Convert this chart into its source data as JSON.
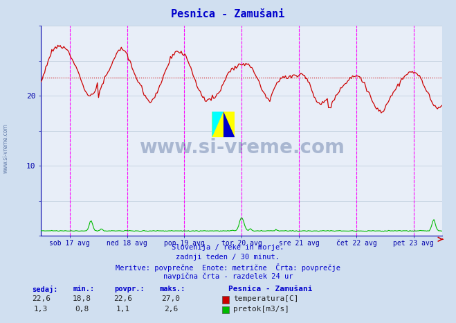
{
  "title": "Pesnica - Zamušani",
  "bg_color": "#d0dff0",
  "plot_bg_color": "#e8eef8",
  "grid_color": "#b8c8d8",
  "title_color": "#0000cc",
  "tick_color": "#0000aa",
  "watermark_color": "#1a3a7a",
  "temp_color": "#cc0000",
  "flow_color": "#00bb00",
  "avg_line_color": "#cc0000",
  "day_line_color": "#ff00ff",
  "subtitle_lines": [
    "Slovenija / reke in morje.",
    "zadnji teden / 30 minut.",
    "Meritve: povprečne  Enote: metrične  Črta: povprečje",
    "navpična črta - razdelek 24 ur"
  ],
  "legend_title": "Pesnica - Zamušani",
  "legend_items": [
    {
      "label": "temperatura[C]",
      "color": "#cc0000"
    },
    {
      "label": "pretok[m3/s]",
      "color": "#00bb00"
    }
  ],
  "stats_headers": [
    "sedaj:",
    "min.:",
    "povpr.:",
    "maks.:"
  ],
  "stats_temp": [
    "22,6",
    "18,8",
    "22,6",
    "27,0"
  ],
  "stats_flow": [
    "1,3",
    "0,8",
    "1,1",
    "2,6"
  ],
  "x_labels": [
    "sob 17 avg",
    "ned 18 avg",
    "pon 19 avg",
    "tor 20 avg",
    "sre 21 avg",
    "čet 22 avg",
    "pet 23 avg"
  ],
  "x_ticks": [
    0.5,
    1.5,
    2.5,
    3.5,
    4.5,
    5.5,
    6.5
  ],
  "day_lines": [
    0.5,
    1.5,
    2.5,
    3.5,
    4.5,
    5.5,
    6.5
  ],
  "ylim": [
    0,
    30
  ],
  "avg_temp": 22.6,
  "n_points": 336,
  "watermark": "www.si-vreme.com"
}
